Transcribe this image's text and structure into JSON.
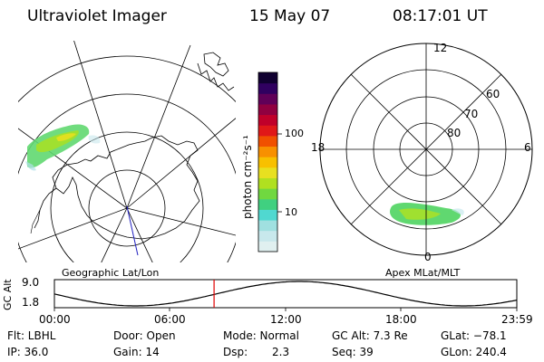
{
  "header": {
    "instrument": "Ultraviolet Imager",
    "date": "15 May 07",
    "time": "08:17:01 UT"
  },
  "colorbar": {
    "unit_label": "photon cm⁻²s⁻¹",
    "tick_100": "100",
    "tick_10": "10",
    "colors": [
      "#e0f0f0",
      "#c8e8ec",
      "#a0e0e0",
      "#50d8d0",
      "#40d080",
      "#70d840",
      "#b0e020",
      "#e8e020",
      "#f8c000",
      "#f89000",
      "#f05000",
      "#e01818",
      "#c0002a",
      "#900040",
      "#600058",
      "#300060",
      "#100030"
    ]
  },
  "left_panel": {
    "label": "Geographic Lat/Lon"
  },
  "right_panel": {
    "label": "Apex MLat/MLT",
    "mlt_12": "12",
    "mlt_18": "18",
    "mlt_6": "6",
    "mlt_0": "0",
    "lat_60": "60",
    "lat_70": "70",
    "lat_80": "80"
  },
  "altitude_plot": {
    "ylabel": "GC Alt",
    "y_top": "9.0",
    "y_bottom": "1.8",
    "x_ticks": [
      "00:00",
      "06:00",
      "12:00",
      "18:00",
      "23:59"
    ],
    "current_time_fraction": 0.3452,
    "marker_color": "#e00000"
  },
  "footer": {
    "filter": "Flt: LBHL",
    "ip": "IP: 36.0",
    "door": "Door: Open",
    "gain": "Gain: 14",
    "mode": "Mode: Normal",
    "dsp_label": "Dsp:",
    "dsp_value": "2.3",
    "gc_alt": "GC Alt: 7.3 Re",
    "seq": "Seq: 39",
    "glat": "GLat: −78.1",
    "glon": "GLon: 240.4"
  }
}
